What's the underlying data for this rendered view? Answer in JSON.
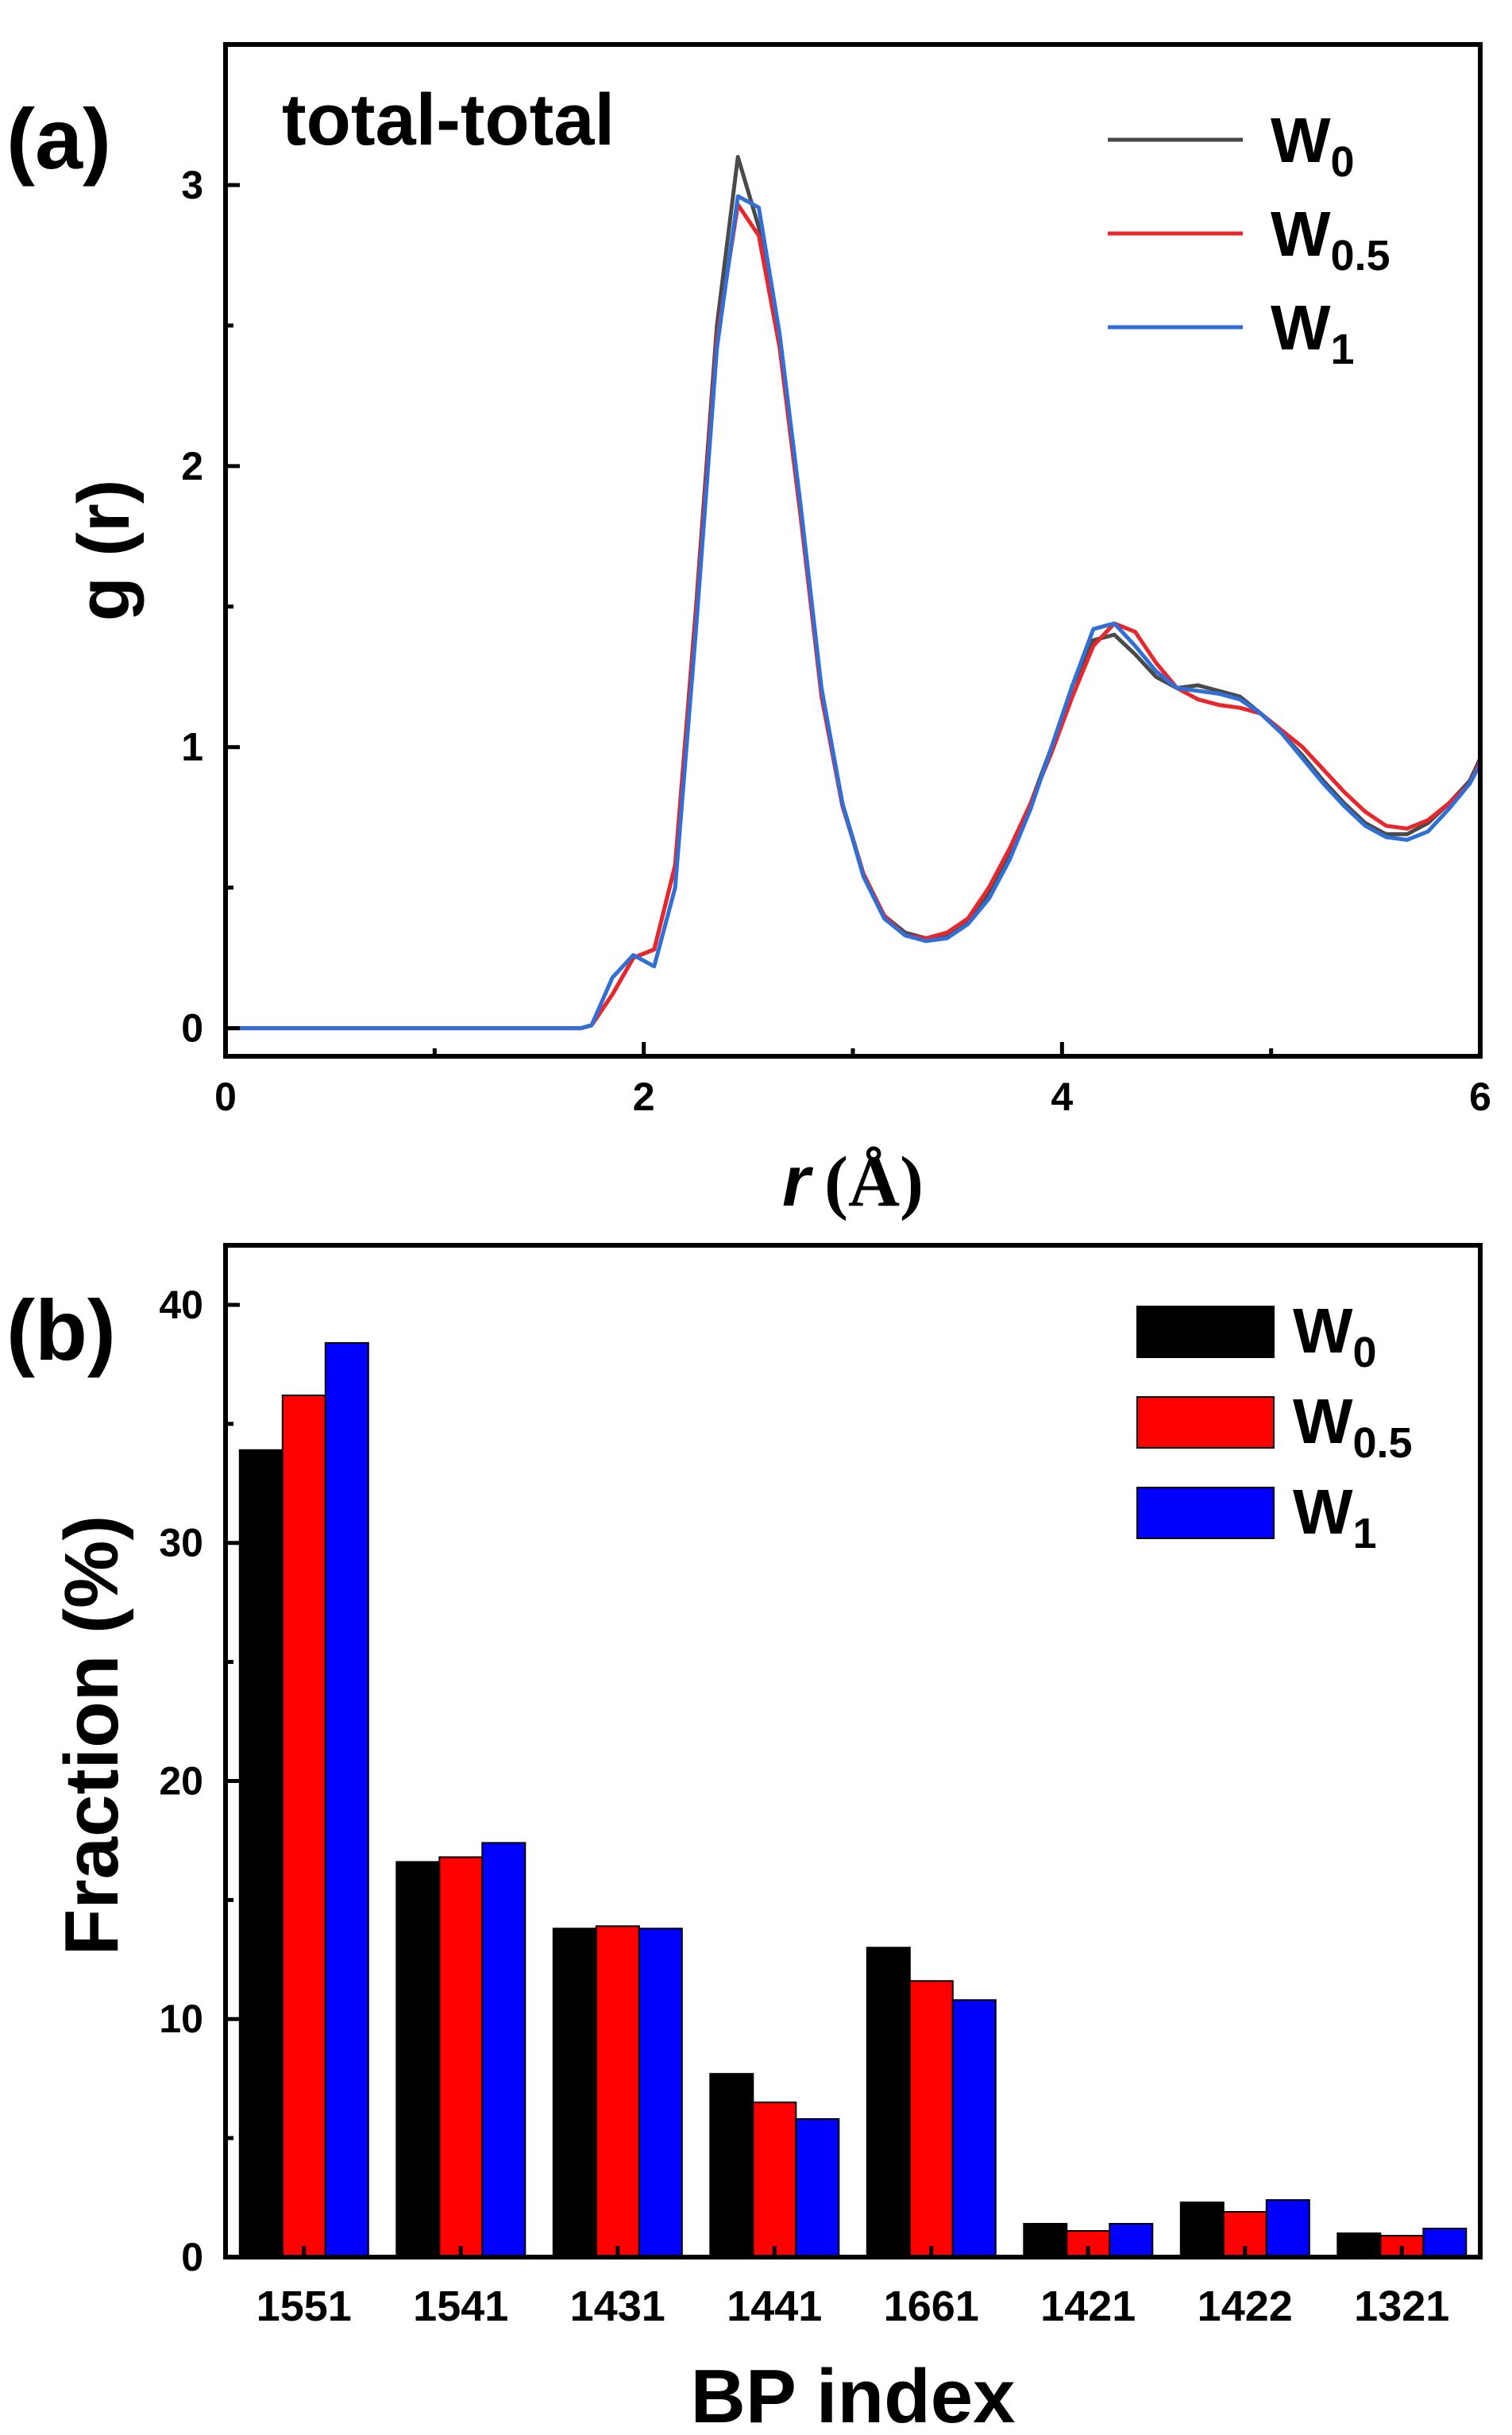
{
  "chart_data": [
    {
      "type": "line",
      "panel_label": "(a)",
      "title": "total-total",
      "xlabel_var": "r",
      "xlabel_unit": "(Å)",
      "ylabel": "g (r)",
      "xlim": [
        0,
        6
      ],
      "ylim": [
        -0.1,
        3.5
      ],
      "xticks": [
        0,
        2,
        4,
        6
      ],
      "yticks": [
        0,
        1,
        2,
        3
      ],
      "legend_position": "top-right",
      "series": [
        {
          "name": "W",
          "sub": "0",
          "color": "#4a4a4a",
          "x": [
            0,
            1.7,
            1.75,
            1.85,
            1.95,
            2.05,
            2.15,
            2.25,
            2.35,
            2.45,
            2.55,
            2.65,
            2.75,
            2.85,
            2.95,
            3.05,
            3.15,
            3.25,
            3.35,
            3.45,
            3.55,
            3.65,
            3.75,
            3.85,
            3.95,
            4.05,
            4.15,
            4.25,
            4.35,
            4.45,
            4.55,
            4.65,
            4.75,
            4.85,
            4.95,
            5.05,
            5.15,
            5.25,
            5.35,
            5.45,
            5.55,
            5.65,
            5.75,
            5.85,
            5.95,
            6.0
          ],
          "y": [
            0,
            0,
            0.01,
            0.12,
            0.25,
            0.28,
            0.58,
            1.5,
            2.5,
            3.1,
            2.85,
            2.45,
            1.85,
            1.2,
            0.8,
            0.55,
            0.4,
            0.34,
            0.32,
            0.33,
            0.38,
            0.48,
            0.62,
            0.8,
            1.0,
            1.22,
            1.38,
            1.4,
            1.33,
            1.25,
            1.21,
            1.22,
            1.2,
            1.18,
            1.12,
            1.05,
            0.97,
            0.88,
            0.8,
            0.73,
            0.69,
            0.69,
            0.73,
            0.8,
            0.88,
            0.96
          ]
        },
        {
          "name": "W",
          "sub": "0.5",
          "color": "#e8262b",
          "x": [
            0,
            1.7,
            1.75,
            1.85,
            1.95,
            2.05,
            2.15,
            2.25,
            2.35,
            2.45,
            2.55,
            2.65,
            2.75,
            2.85,
            2.95,
            3.05,
            3.15,
            3.25,
            3.35,
            3.45,
            3.55,
            3.65,
            3.75,
            3.85,
            3.95,
            4.05,
            4.15,
            4.25,
            4.35,
            4.45,
            4.55,
            4.65,
            4.75,
            4.85,
            4.95,
            5.05,
            5.15,
            5.25,
            5.35,
            5.45,
            5.55,
            5.65,
            5.75,
            5.85,
            5.95,
            6.0
          ],
          "y": [
            0,
            0,
            0.01,
            0.12,
            0.25,
            0.28,
            0.58,
            1.48,
            2.45,
            2.93,
            2.82,
            2.42,
            1.82,
            1.18,
            0.79,
            0.55,
            0.4,
            0.33,
            0.32,
            0.34,
            0.39,
            0.5,
            0.64,
            0.8,
            0.98,
            1.18,
            1.36,
            1.44,
            1.41,
            1.3,
            1.21,
            1.17,
            1.15,
            1.14,
            1.12,
            1.06,
            1.0,
            0.92,
            0.84,
            0.77,
            0.72,
            0.71,
            0.74,
            0.8,
            0.87,
            0.95
          ]
        },
        {
          "name": "W",
          "sub": "1",
          "color": "#2f6fd6",
          "x": [
            0,
            1.7,
            1.75,
            1.85,
            1.95,
            2.05,
            2.15,
            2.25,
            2.35,
            2.45,
            2.55,
            2.65,
            2.75,
            2.85,
            2.95,
            3.05,
            3.15,
            3.25,
            3.35,
            3.45,
            3.55,
            3.65,
            3.75,
            3.85,
            3.95,
            4.05,
            4.15,
            4.25,
            4.35,
            4.45,
            4.55,
            4.65,
            4.75,
            4.85,
            4.95,
            5.05,
            5.15,
            5.25,
            5.35,
            5.45,
            5.55,
            5.65,
            5.75,
            5.85,
            5.95,
            6.0
          ],
          "y": [
            0,
            0,
            0.01,
            0.18,
            0.26,
            0.22,
            0.5,
            1.42,
            2.42,
            2.96,
            2.92,
            2.47,
            1.86,
            1.21,
            0.8,
            0.54,
            0.39,
            0.33,
            0.31,
            0.32,
            0.37,
            0.46,
            0.6,
            0.78,
            1.0,
            1.22,
            1.42,
            1.44,
            1.36,
            1.27,
            1.21,
            1.2,
            1.19,
            1.17,
            1.12,
            1.05,
            0.96,
            0.87,
            0.79,
            0.72,
            0.68,
            0.67,
            0.7,
            0.78,
            0.87,
            0.94
          ]
        }
      ]
    },
    {
      "type": "bar",
      "panel_label": "(b)",
      "xlabel": "BP index",
      "ylabel": "Fraction (%)",
      "ylim": [
        0,
        42.5
      ],
      "yticks": [
        0,
        10,
        20,
        30,
        40
      ],
      "legend_position": "top-right",
      "categories": [
        "1551",
        "1541",
        "1431",
        "1441",
        "1661",
        "1421",
        "1422",
        "1321"
      ],
      "series": [
        {
          "name": "W",
          "sub": "0",
          "color": "#000000",
          "values": [
            33.9,
            16.6,
            13.8,
            7.7,
            13.0,
            1.4,
            2.3,
            1.0
          ]
        },
        {
          "name": "W",
          "sub": "0.5",
          "color": "#ff0000",
          "values": [
            36.2,
            16.8,
            13.9,
            6.5,
            11.6,
            1.1,
            1.9,
            0.9
          ]
        },
        {
          "name": "W",
          "sub": "1",
          "color": "#0000ff",
          "values": [
            38.4,
            17.4,
            13.8,
            5.8,
            10.8,
            1.4,
            2.4,
            1.2
          ]
        }
      ]
    }
  ]
}
